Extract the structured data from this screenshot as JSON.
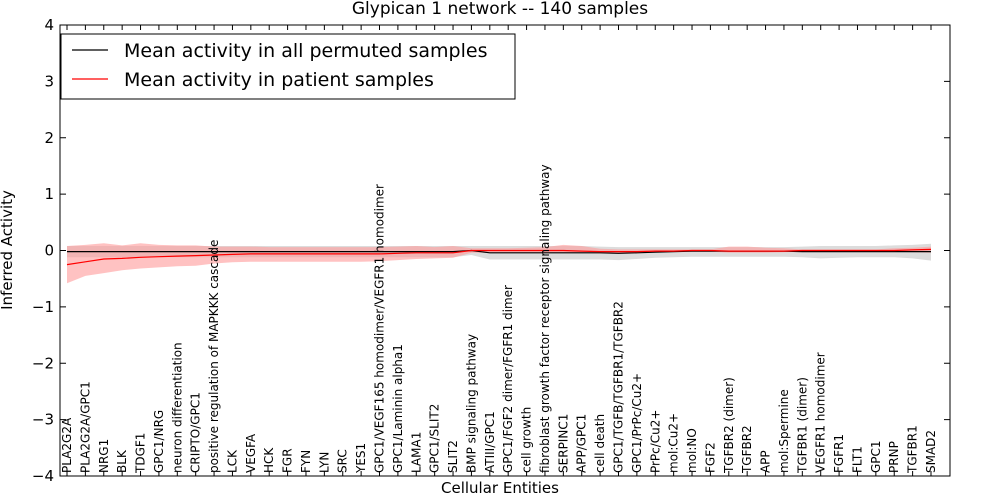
{
  "chart_data": {
    "type": "line",
    "title": "Glypican 1 network -- 140 samples",
    "xlabel": "Cellular Entities",
    "ylabel": "Inferred Activity",
    "ylim": [
      -4,
      4
    ],
    "yticks": [
      4,
      3,
      2,
      1,
      0,
      -1,
      -2,
      -3,
      -4
    ],
    "ytick_labels": [
      "4",
      "3",
      "2",
      "1",
      "0",
      "−1",
      "−2",
      "−3",
      "−4"
    ],
    "grid": false,
    "legend_position": "top-left",
    "categories": [
      "PLA2G2A",
      "PLA2G2A/GPC1",
      "NRG1",
      "BLK",
      "TDGF1",
      "GPC1/NRG",
      "neuron differentiation",
      "CRIPTO/GPC1",
      "positive regulation of MAPKKK cascade",
      "LCK",
      "VEGFA",
      "HCK",
      "FGR",
      "FYN",
      "LYN",
      "SRC",
      "YES1",
      "GPC1/VEGF165 homodimer/VEGFR1 homodimer",
      "GPC1/Laminin alpha1",
      "LAMA1",
      "GPC1/SLIT2",
      "SLIT2",
      "BMP signaling pathway",
      "ATIII/GPC1",
      "GPC1/FGF2 dimer/FGFR1 dimer",
      "cell growth",
      "fibroblast growth factor receptor signaling pathway",
      "SERPINC1",
      "APP/GPC1",
      "cell death",
      "GPC1/TGFB/TGFBR1/TGFBR2",
      "GPC1/PrPc/Cu2+",
      "PrPc/Cu2+",
      "mol:Cu2+",
      "mol:NO",
      "FGF2",
      "TGFBR2 (dimer)",
      "TGFBR2",
      "APP",
      "mol:Spermine",
      "TGFBR1 (dimer)",
      "VEGFR1 homodimer",
      "FGFR1",
      "FLT1",
      "GPC1",
      "PRNP",
      "TGFBR1",
      "SMAD2"
    ],
    "series": [
      {
        "name": "Mean activity in all permuted samples",
        "color": "#000000",
        "band_color": "#bfbfbf",
        "values": [
          -0.02,
          -0.02,
          -0.02,
          -0.02,
          -0.02,
          -0.02,
          -0.02,
          -0.02,
          -0.02,
          -0.02,
          -0.02,
          -0.02,
          -0.02,
          -0.02,
          -0.02,
          -0.02,
          -0.02,
          -0.02,
          -0.02,
          -0.02,
          -0.02,
          -0.02,
          0.0,
          -0.04,
          -0.04,
          -0.04,
          -0.04,
          -0.04,
          -0.04,
          -0.04,
          -0.05,
          -0.04,
          -0.03,
          -0.02,
          -0.01,
          -0.01,
          -0.01,
          -0.01,
          -0.01,
          -0.01,
          -0.02,
          -0.02,
          -0.02,
          -0.02,
          -0.02,
          -0.02,
          -0.02,
          -0.02
        ],
        "lower": [
          -0.12,
          -0.12,
          -0.12,
          -0.12,
          -0.12,
          -0.12,
          -0.12,
          -0.12,
          -0.12,
          -0.12,
          -0.12,
          -0.12,
          -0.12,
          -0.12,
          -0.12,
          -0.12,
          -0.12,
          -0.12,
          -0.12,
          -0.12,
          -0.12,
          -0.12,
          -0.08,
          -0.16,
          -0.16,
          -0.16,
          -0.16,
          -0.16,
          -0.16,
          -0.16,
          -0.17,
          -0.15,
          -0.13,
          -0.12,
          -0.11,
          -0.11,
          -0.11,
          -0.11,
          -0.11,
          -0.11,
          -0.12,
          -0.14,
          -0.13,
          -0.12,
          -0.12,
          -0.12,
          -0.14,
          -0.18
        ],
        "upper": [
          0.08,
          0.08,
          0.08,
          0.08,
          0.08,
          0.08,
          0.08,
          0.08,
          0.08,
          0.08,
          0.08,
          0.08,
          0.08,
          0.08,
          0.08,
          0.08,
          0.08,
          0.08,
          0.08,
          0.08,
          0.08,
          0.08,
          0.08,
          0.08,
          0.08,
          0.08,
          0.08,
          0.08,
          0.08,
          0.07,
          0.06,
          0.06,
          0.06,
          0.06,
          0.06,
          0.06,
          0.06,
          0.06,
          0.06,
          0.06,
          0.07,
          0.08,
          0.08,
          0.08,
          0.08,
          0.09,
          0.1,
          0.12
        ]
      },
      {
        "name": "Mean activity in patient samples",
        "color": "#ff0000",
        "band_color": "#ff9999",
        "values": [
          -0.25,
          -0.2,
          -0.15,
          -0.14,
          -0.12,
          -0.11,
          -0.1,
          -0.09,
          -0.08,
          -0.07,
          -0.06,
          -0.06,
          -0.06,
          -0.06,
          -0.06,
          -0.06,
          -0.06,
          -0.06,
          -0.05,
          -0.04,
          -0.04,
          -0.04,
          0.0,
          0.0,
          0.0,
          0.0,
          0.0,
          0.0,
          -0.01,
          -0.02,
          -0.02,
          -0.02,
          -0.01,
          -0.01,
          0.0,
          0.0,
          -0.01,
          -0.01,
          -0.01,
          -0.01,
          0.0,
          0.0,
          0.0,
          0.0,
          0.0,
          0.0,
          0.01,
          0.02
        ],
        "lower": [
          -0.58,
          -0.45,
          -0.4,
          -0.35,
          -0.32,
          -0.3,
          -0.28,
          -0.27,
          -0.23,
          -0.21,
          -0.2,
          -0.2,
          -0.2,
          -0.2,
          -0.2,
          -0.2,
          -0.2,
          -0.19,
          -0.17,
          -0.15,
          -0.14,
          -0.13,
          -0.04,
          -0.04,
          -0.04,
          -0.04,
          -0.04,
          -0.04,
          -0.04,
          -0.05,
          -0.05,
          -0.04,
          -0.03,
          -0.02,
          -0.02,
          -0.02,
          -0.04,
          -0.04,
          -0.04,
          -0.03,
          -0.02,
          -0.02,
          -0.02,
          -0.02,
          -0.02,
          -0.02,
          -0.03,
          -0.04
        ],
        "upper": [
          0.08,
          0.1,
          0.13,
          0.09,
          0.13,
          0.1,
          0.09,
          0.09,
          0.07,
          0.07,
          0.07,
          0.06,
          0.06,
          0.06,
          0.06,
          0.06,
          0.06,
          0.06,
          0.07,
          0.08,
          0.06,
          0.08,
          0.04,
          0.04,
          0.04,
          0.05,
          0.06,
          0.1,
          0.08,
          0.03,
          0.02,
          0.02,
          0.02,
          0.02,
          0.02,
          0.02,
          0.07,
          0.07,
          0.05,
          0.04,
          0.02,
          0.02,
          0.02,
          0.02,
          0.02,
          0.04,
          0.05,
          0.07
        ]
      }
    ]
  }
}
